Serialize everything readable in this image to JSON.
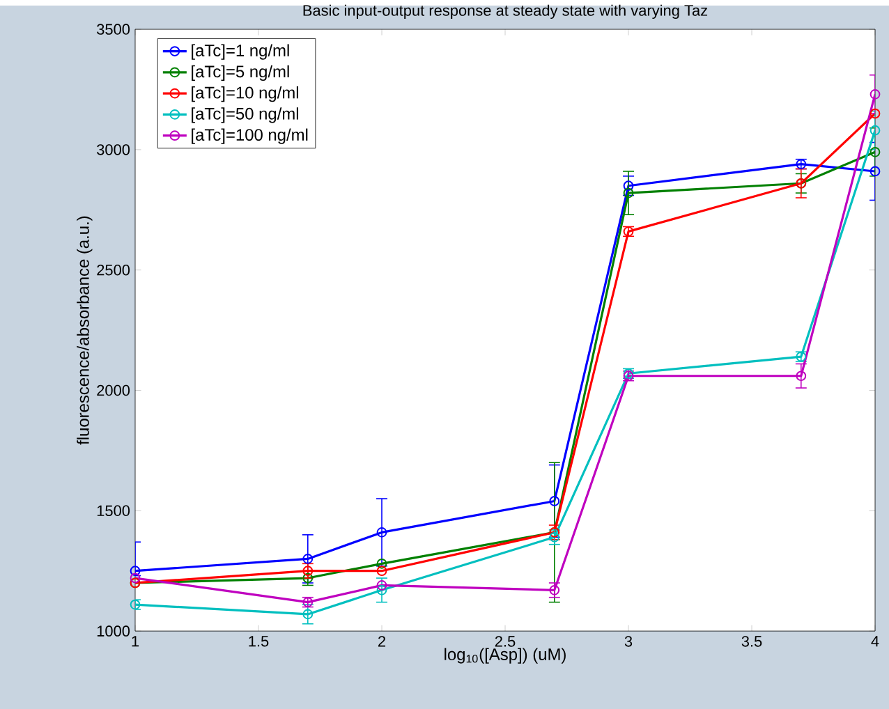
{
  "chart_data": {
    "type": "line",
    "title": "Basic input-output response at steady state with varying Taz",
    "xlabel": "log$_{10}$([Asp])  (uM)",
    "ylabel": "fluorescence/absorbance (a.u.)",
    "x": [
      1,
      1.7,
      2,
      2.7,
      3,
      3.7,
      4
    ],
    "xlim": [
      1,
      4
    ],
    "xticks": [
      1,
      1.5,
      2,
      2.5,
      3,
      3.5,
      4
    ],
    "ylim": [
      1000,
      3500
    ],
    "yticks": [
      1000,
      1500,
      2000,
      2500,
      3000,
      3500
    ],
    "legend": "top left",
    "marker": "circle",
    "grid": false,
    "series": [
      {
        "name": "[aTc]=1 ng/ml",
        "color": "#0000ff",
        "values": [
          1250,
          1300,
          1410,
          1540,
          2850,
          2940,
          2910
        ],
        "errors": [
          [
            1230,
            1370
          ],
          100,
          140,
          150,
          40,
          20,
          120
        ]
      },
      {
        "name": "[aTc]=5 ng/ml",
        "color": "#008000",
        "values": [
          1200,
          1220,
          1280,
          1410,
          2820,
          2860,
          2990
        ],
        "errors": [
          null,
          30,
          null,
          290,
          90,
          40,
          100
        ]
      },
      {
        "name": "[aTc]=10 ng/ml",
        "color": "#ff0000",
        "values": [
          1200,
          1250,
          1250,
          1410,
          2660,
          2860,
          3150
        ],
        "errors": [
          null,
          30,
          null,
          30,
          20,
          60,
          null
        ]
      },
      {
        "name": "[aTc]=50 ng/ml",
        "color": "#00bfbf",
        "values": [
          1110,
          1070,
          1170,
          1390,
          2070,
          2140,
          3080
        ],
        "errors": [
          20,
          40,
          50,
          30,
          20,
          20,
          80
        ]
      },
      {
        "name": "[aTc]=100 ng/ml",
        "color": "#bf00bf",
        "values": [
          1220,
          1120,
          1190,
          1170,
          2060,
          2060,
          3230
        ],
        "errors": [
          null,
          20,
          null,
          30,
          20,
          50,
          80
        ]
      }
    ]
  }
}
